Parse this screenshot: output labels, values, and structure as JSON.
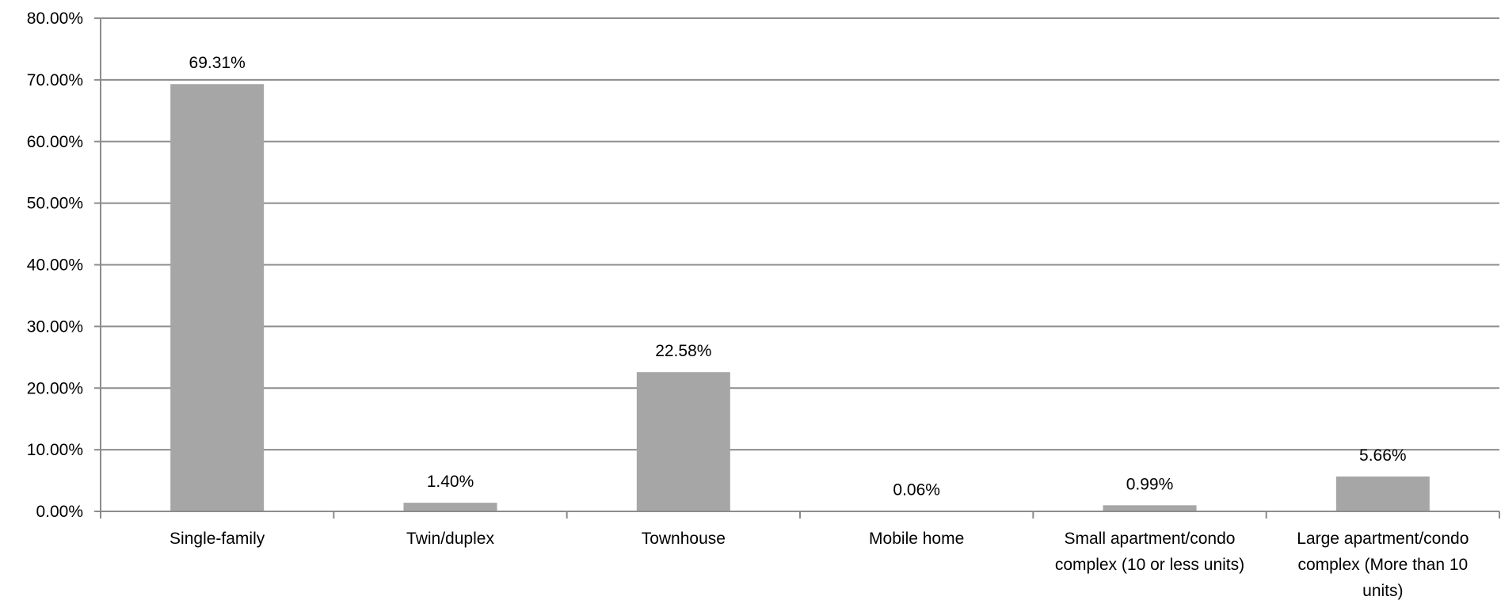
{
  "chart_data": {
    "type": "bar",
    "categories": [
      [
        "Single-family"
      ],
      [
        "Twin/duplex"
      ],
      [
        "Townhouse"
      ],
      [
        "Mobile home"
      ],
      [
        "Small apartment/condo",
        "complex (10 or less units)"
      ],
      [
        "Large apartment/condo",
        "complex (More than 10",
        "units)"
      ]
    ],
    "values": [
      69.31,
      1.4,
      22.58,
      0.06,
      0.99,
      5.66
    ],
    "data_labels": [
      "69.31%",
      "1.40%",
      "22.58%",
      "0.06%",
      "0.99%",
      "5.66%"
    ],
    "yticks": [
      0,
      10,
      20,
      30,
      40,
      50,
      60,
      70,
      80
    ],
    "ytick_labels": [
      "0.00%",
      "10.00%",
      "20.00%",
      "30.00%",
      "40.00%",
      "50.00%",
      "60.00%",
      "70.00%",
      "80.00%"
    ],
    "ylim": [
      0,
      80
    ],
    "grid": true,
    "title": "",
    "xlabel": "",
    "ylabel": "",
    "colors": {
      "bar": "#a6a6a6",
      "grid": "#8c8c8c",
      "axis": "#8c8c8c"
    }
  }
}
